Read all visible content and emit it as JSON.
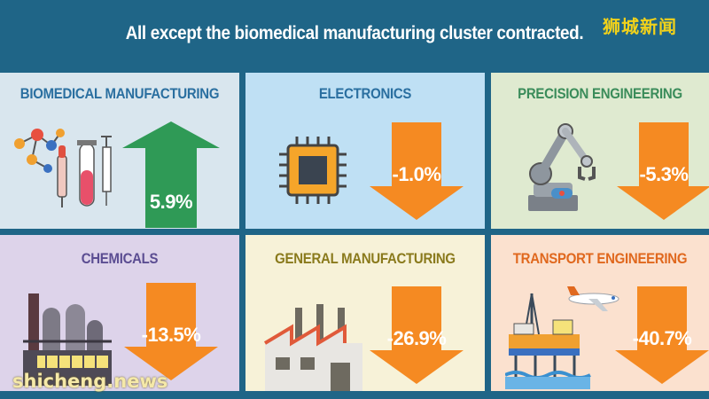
{
  "header": {
    "title": "All except the biomedical manufacturing cluster contracted.",
    "logo": "狮城新闻"
  },
  "watermark": "shicheng.news",
  "colors": {
    "background": "#1f6587",
    "up_arrow": "#2f9a56",
    "down_arrow": "#f58a22"
  },
  "clusters": [
    {
      "label": "BIOMEDICAL MANUFACTURING",
      "change": "5.9%",
      "direction": "up",
      "label_color": "#2a6fa0",
      "bg": "#d9e6ee",
      "icon": "lab-equipment-icon"
    },
    {
      "label": "ELECTRONICS",
      "change": "-1.0%",
      "direction": "down",
      "label_color": "#2a6fa0",
      "bg": "#bfe0f4",
      "icon": "microchip-icon"
    },
    {
      "label": "PRECISION ENGINEERING",
      "change": "-5.3%",
      "direction": "down",
      "label_color": "#3a8c5a",
      "bg": "#dfead0",
      "icon": "robotic-arm-icon"
    },
    {
      "label": "CHEMICALS",
      "change": "-13.5%",
      "direction": "down",
      "label_color": "#5b4d92",
      "bg": "#ddd3ea",
      "icon": "chemical-plant-icon"
    },
    {
      "label": "GENERAL MANUFACTURING",
      "change": "-26.9%",
      "direction": "down",
      "label_color": "#8a7a1c",
      "bg": "#f7f2d8",
      "icon": "factory-icon"
    },
    {
      "label": "TRANSPORT ENGINEERING",
      "change": "-40.7%",
      "direction": "down",
      "label_color": "#e0681e",
      "bg": "#fbe1cf",
      "icon": "oil-rig-airplane-icon"
    }
  ]
}
